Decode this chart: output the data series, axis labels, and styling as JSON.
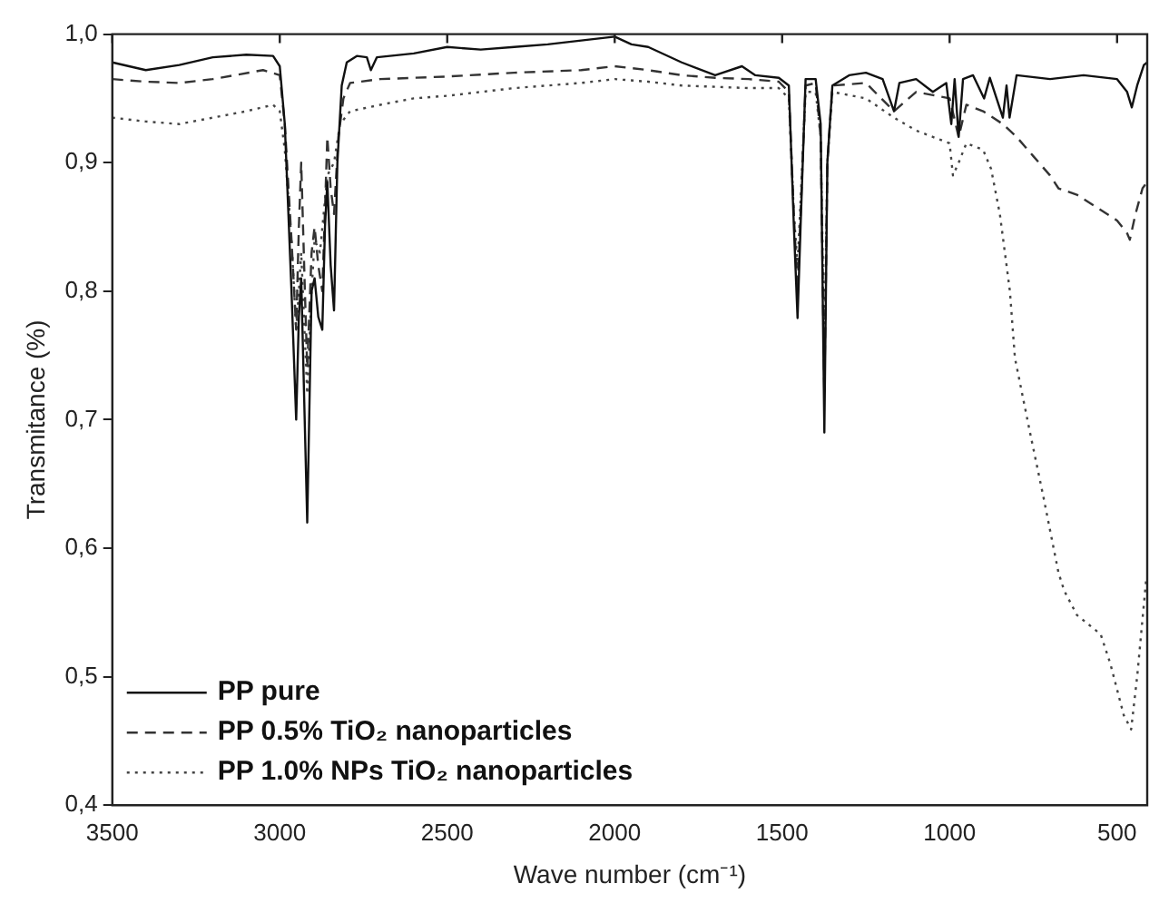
{
  "chart_data": {
    "type": "line",
    "xlabel": "Wave number (cm⁻¹)",
    "ylabel": "Transmitance (%)",
    "xlim": [
      3500,
      410
    ],
    "xticks": [
      3500,
      3000,
      2500,
      2000,
      1500,
      1000,
      500
    ],
    "ylim": [
      0.4,
      1.0
    ],
    "yticks": [
      {
        "value": 0.4,
        "label": "0,4"
      },
      {
        "value": 0.5,
        "label": "0,5"
      },
      {
        "value": 0.6,
        "label": "0,6"
      },
      {
        "value": 0.7,
        "label": "0,7"
      },
      {
        "value": 0.8,
        "label": "0,8"
      },
      {
        "value": 0.9,
        "label": "0,9"
      },
      {
        "value": 1.0,
        "label": "1,0"
      }
    ],
    "grid": false,
    "legend": "bottom left",
    "marker": "none",
    "series": [
      {
        "name": "PP pure",
        "color": "#111111",
        "line_style": "solid",
        "x": [
          3500,
          3400,
          3300,
          3200,
          3100,
          3020,
          3000,
          2985,
          2965,
          2951,
          2943,
          2936,
          2918,
          2905,
          2896,
          2885,
          2873,
          2865,
          2858,
          2848,
          2838,
          2828,
          2815,
          2800,
          2770,
          2740,
          2728,
          2710,
          2600,
          2500,
          2400,
          2300,
          2200,
          2100,
          2000,
          1950,
          1900,
          1800,
          1700,
          1620,
          1580,
          1510,
          1480,
          1465,
          1454,
          1445,
          1430,
          1400,
          1385,
          1374,
          1365,
          1350,
          1300,
          1250,
          1200,
          1166,
          1150,
          1100,
          1050,
          1010,
          995,
          985,
          973,
          960,
          930,
          897,
          880,
          841,
          830,
          821,
          800,
          700,
          600,
          500,
          470,
          456,
          440,
          420,
          410
        ],
        "values": [
          0.978,
          0.972,
          0.976,
          0.982,
          0.984,
          0.983,
          0.975,
          0.93,
          0.8,
          0.7,
          0.78,
          0.81,
          0.62,
          0.8,
          0.81,
          0.78,
          0.77,
          0.85,
          0.885,
          0.82,
          0.785,
          0.9,
          0.96,
          0.978,
          0.983,
          0.982,
          0.972,
          0.982,
          0.985,
          0.99,
          0.988,
          0.99,
          0.992,
          0.995,
          0.998,
          0.992,
          0.99,
          0.978,
          0.968,
          0.975,
          0.968,
          0.966,
          0.96,
          0.85,
          0.779,
          0.85,
          0.965,
          0.965,
          0.93,
          0.69,
          0.9,
          0.96,
          0.968,
          0.97,
          0.965,
          0.94,
          0.962,
          0.965,
          0.955,
          0.962,
          0.93,
          0.965,
          0.92,
          0.965,
          0.968,
          0.95,
          0.966,
          0.935,
          0.96,
          0.935,
          0.968,
          0.965,
          0.968,
          0.965,
          0.955,
          0.943,
          0.96,
          0.976,
          0.978
        ]
      },
      {
        "name": "PP 0.5% TiO₂ nanoparticles",
        "color": "#333333",
        "line_style": "dashed",
        "x": [
          3500,
          3400,
          3300,
          3200,
          3050,
          3000,
          2985,
          2965,
          2951,
          2943,
          2936,
          2925,
          2918,
          2905,
          2896,
          2885,
          2873,
          2858,
          2848,
          2838,
          2825,
          2810,
          2790,
          2700,
          2500,
          2300,
          2100,
          2000,
          1900,
          1800,
          1700,
          1600,
          1510,
          1480,
          1465,
          1454,
          1445,
          1430,
          1400,
          1385,
          1374,
          1365,
          1350,
          1250,
          1166,
          1100,
          1000,
          973,
          950,
          900,
          841,
          800,
          750,
          700,
          675,
          620,
          560,
          500,
          470,
          462,
          445,
          424,
          410
        ],
        "values": [
          0.965,
          0.963,
          0.962,
          0.965,
          0.972,
          0.968,
          0.93,
          0.84,
          0.77,
          0.85,
          0.9,
          0.8,
          0.74,
          0.83,
          0.85,
          0.82,
          0.8,
          0.92,
          0.88,
          0.86,
          0.92,
          0.95,
          0.962,
          0.965,
          0.967,
          0.97,
          0.972,
          0.975,
          0.972,
          0.968,
          0.966,
          0.965,
          0.963,
          0.955,
          0.86,
          0.8,
          0.86,
          0.96,
          0.962,
          0.92,
          0.72,
          0.9,
          0.96,
          0.962,
          0.94,
          0.955,
          0.95,
          0.92,
          0.945,
          0.94,
          0.93,
          0.92,
          0.905,
          0.89,
          0.88,
          0.875,
          0.865,
          0.855,
          0.845,
          0.84,
          0.86,
          0.88,
          0.885
        ]
      },
      {
        "name": "PP 1.0% NPs TiO₂ nanoparticles",
        "color": "#444444",
        "line_style": "dotted",
        "x": [
          3500,
          3400,
          3300,
          3200,
          3100,
          3020,
          3000,
          2985,
          2965,
          2951,
          2943,
          2936,
          2918,
          2905,
          2896,
          2880,
          2858,
          2838,
          2820,
          2790,
          2700,
          2600,
          2500,
          2300,
          2100,
          2000,
          1900,
          1800,
          1600,
          1510,
          1480,
          1465,
          1454,
          1445,
          1430,
          1400,
          1385,
          1374,
          1365,
          1350,
          1250,
          1166,
          1100,
          1000,
          990,
          973,
          950,
          900,
          876,
          850,
          820,
          805,
          760,
          720,
          675,
          658,
          620,
          549,
          520,
          480,
          458,
          440,
          413
        ],
        "values": [
          0.935,
          0.932,
          0.93,
          0.935,
          0.94,
          0.945,
          0.94,
          0.91,
          0.84,
          0.77,
          0.8,
          0.83,
          0.72,
          0.8,
          0.84,
          0.83,
          0.89,
          0.9,
          0.93,
          0.94,
          0.945,
          0.95,
          0.952,
          0.958,
          0.962,
          0.965,
          0.963,
          0.96,
          0.958,
          0.958,
          0.95,
          0.86,
          0.82,
          0.87,
          0.955,
          0.955,
          0.92,
          0.75,
          0.9,
          0.955,
          0.95,
          0.935,
          0.925,
          0.915,
          0.89,
          0.9,
          0.915,
          0.91,
          0.895,
          0.86,
          0.8,
          0.748,
          0.69,
          0.64,
          0.581,
          0.567,
          0.548,
          0.533,
          0.51,
          0.47,
          0.459,
          0.5,
          0.576
        ]
      }
    ]
  }
}
